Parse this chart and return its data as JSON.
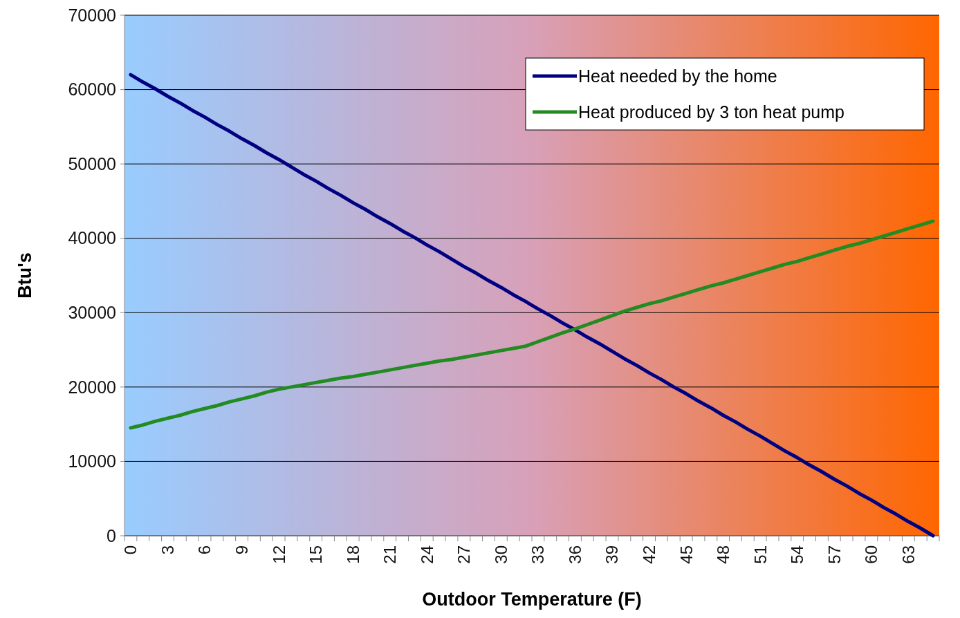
{
  "chart_data": {
    "type": "line",
    "xlabel": "Outdoor Temperature (F)",
    "ylabel": "Btu's",
    "categories": [
      "0",
      null,
      null,
      "3",
      null,
      null,
      "6",
      null,
      null,
      "9",
      null,
      null,
      "12",
      null,
      null,
      "15",
      null,
      null,
      "18",
      null,
      null,
      "21",
      null,
      null,
      "24",
      null,
      null,
      "27",
      null,
      null,
      "30",
      null,
      null,
      "33",
      null,
      null,
      "36",
      null,
      null,
      "39",
      null,
      null,
      "42",
      null,
      null,
      "45",
      null,
      null,
      "48",
      null,
      null,
      "51",
      null,
      null,
      "54",
      null,
      null,
      "57",
      null,
      null,
      "60",
      null,
      null,
      "63",
      null,
      null
    ],
    "series": [
      {
        "name": "Heat needed by the home",
        "color": "#000080",
        "values": [
          62000,
          61000,
          60100,
          59100,
          58200,
          57200,
          56300,
          55300,
          54400,
          53400,
          52500,
          51500,
          50600,
          49600,
          48600,
          47700,
          46700,
          45800,
          44800,
          43900,
          42900,
          42000,
          41000,
          40100,
          39100,
          38200,
          37200,
          36200,
          35300,
          34300,
          33400,
          32400,
          31500,
          30500,
          29600,
          28600,
          27700,
          26700,
          25800,
          24800,
          23800,
          22900,
          21900,
          21000,
          20000,
          19100,
          18100,
          17200,
          16200,
          15300,
          14300,
          13400,
          12400,
          11400,
          10500,
          9500,
          8600,
          7600,
          6700,
          5700,
          4800,
          3800,
          2900,
          1900,
          1000,
          0
        ]
      },
      {
        "name": "Heat produced by 3 ton heat pump",
        "color": "#228b22",
        "values": [
          14500,
          14900,
          15400,
          15800,
          16200,
          16700,
          17100,
          17500,
          18000,
          18400,
          18800,
          19300,
          19700,
          20000,
          20300,
          20600,
          20900,
          21200,
          21400,
          21700,
          22000,
          22300,
          22600,
          22900,
          23200,
          23500,
          23700,
          24000,
          24300,
          24600,
          24900,
          25200,
          25500,
          26100,
          26700,
          27300,
          27800,
          28400,
          29000,
          29600,
          30200,
          30700,
          31200,
          31600,
          32100,
          32600,
          33100,
          33600,
          34000,
          34500,
          35000,
          35500,
          36000,
          36500,
          36900,
          37400,
          37900,
          38400,
          38900,
          39300,
          39800,
          40300,
          40800,
          41300,
          41800,
          42300
        ]
      }
    ],
    "ylim": [
      0,
      70000
    ],
    "yticks": [
      0,
      10000,
      20000,
      30000,
      40000,
      50000,
      60000,
      70000
    ],
    "grid": "y",
    "legend": "top right",
    "marker": "none",
    "line_style": "solid"
  }
}
